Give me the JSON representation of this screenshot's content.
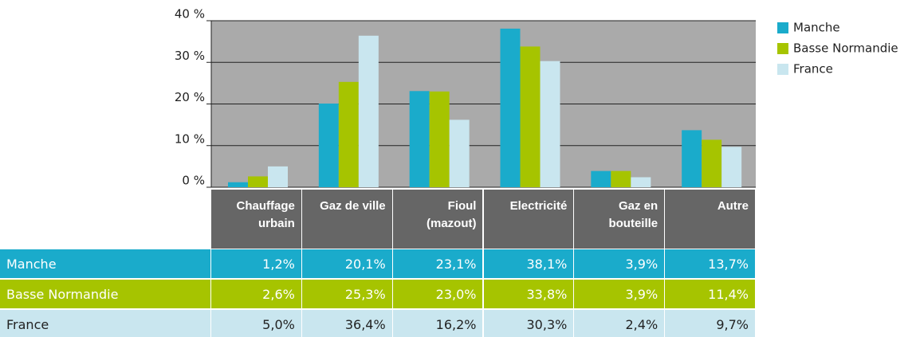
{
  "chart_data": {
    "type": "bar",
    "categories": [
      "Chauffage urbain",
      "Gaz de ville",
      "Fioul (mazout)",
      "Electricité",
      "Gaz en bouteille",
      "Autre"
    ],
    "series": [
      {
        "name": "Manche",
        "color": "#1aabcb",
        "values": [
          1.2,
          20.1,
          23.1,
          38.1,
          3.9,
          13.7
        ],
        "value_labels": [
          "1,2%",
          "20,1%",
          "23,1%",
          "38,1%",
          "3,9%",
          "13,7%"
        ]
      },
      {
        "name": "Basse Normandie",
        "color": "#a6c400",
        "values": [
          2.6,
          25.3,
          23.0,
          33.8,
          3.9,
          11.4
        ],
        "value_labels": [
          "2,6%",
          "25,3%",
          "23,0%",
          "33,8%",
          "3,9%",
          "11,4%"
        ]
      },
      {
        "name": "France",
        "color": "#c9e6ef",
        "values": [
          5.0,
          36.4,
          16.2,
          30.3,
          2.4,
          9.7
        ],
        "value_labels": [
          "5,0%",
          "36,4%",
          "16,2%",
          "30,3%",
          "2,4%",
          "9,7%"
        ]
      }
    ],
    "ylim": [
      0,
      40
    ],
    "yticks": [
      {
        "value": 0,
        "label": "0 %"
      },
      {
        "value": 10,
        "label": "10 %"
      },
      {
        "value": 20,
        "label": "20 %"
      },
      {
        "value": 30,
        "label": "30 %"
      },
      {
        "value": 40,
        "label": "40 %"
      }
    ],
    "grid": true,
    "legend": "right"
  }
}
